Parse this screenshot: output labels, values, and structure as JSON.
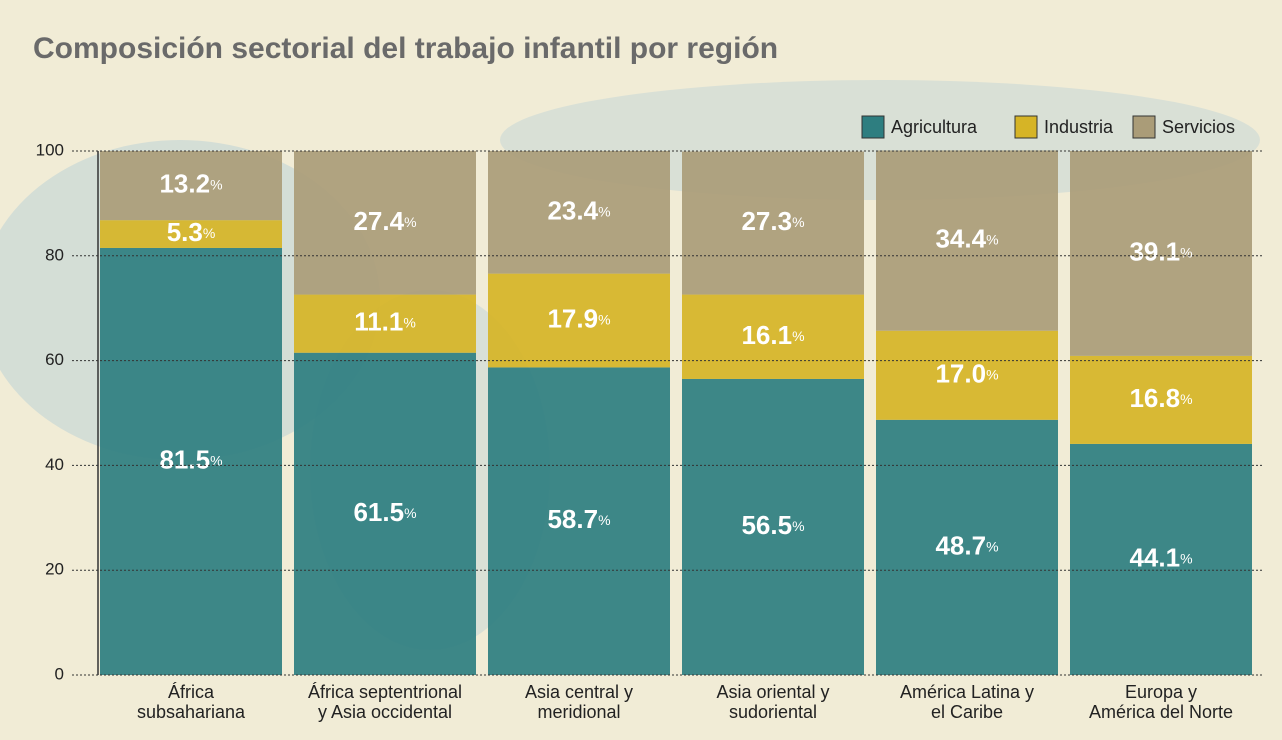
{
  "chart_data": {
    "type": "stacked_bar",
    "title": "Composición sectorial del trabajo infantil por región",
    "categories": [
      "África\nsubsahariana",
      "África septentrional\ny Asia occidental",
      "Asia central y\nmeridional",
      "Asia oriental y\nsudoriental",
      "América Latina y\nel Caribe",
      "Europa y\nAmérica del Norte"
    ],
    "series": [
      {
        "name": "Agricultura",
        "color": "#2e7e80",
        "values": [
          81.5,
          61.5,
          58.7,
          56.5,
          48.7,
          44.1
        ],
        "value_labels": [
          "81.5%",
          "61.5%",
          "58.7%",
          "56.5%",
          "48.7%",
          "44.1%"
        ]
      },
      {
        "name": "Industria",
        "color": "#d6b426",
        "values": [
          5.3,
          11.1,
          17.9,
          16.1,
          17.0,
          16.8
        ],
        "value_labels": [
          "5.3%",
          "11.1%",
          "17.9%",
          "16.1%",
          "17.0%",
          "16.8%"
        ]
      },
      {
        "name": "Servicios",
        "color": "#aa9c78",
        "values": [
          13.2,
          27.4,
          23.4,
          27.3,
          34.4,
          39.1
        ],
        "value_labels": [
          "13.2%",
          "27.4%",
          "23.4%",
          "27.3%",
          "34.4%",
          "39.1%"
        ]
      }
    ],
    "ylim": [
      0,
      100
    ],
    "yticks": [
      0,
      20,
      40,
      60,
      80,
      100
    ],
    "grid": true,
    "legend": "top-right"
  }
}
